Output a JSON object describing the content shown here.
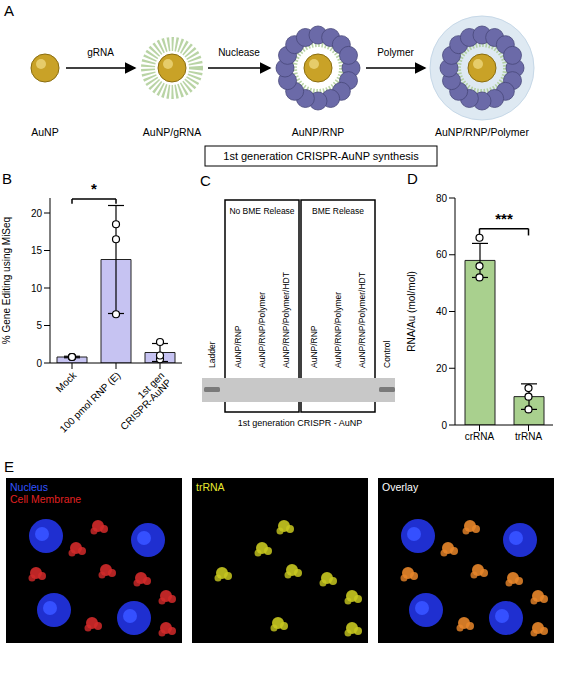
{
  "chart_data": [
    {
      "panel": "B",
      "type": "bar",
      "categories": [
        "Mock",
        "100 pmol RNP (E)",
        "1st gen CRISPR-AuNP"
      ],
      "values": [
        0.8,
        13.8,
        1.4
      ],
      "errors": [
        0.1,
        7.2,
        1.2
      ],
      "points": [
        [
          0.8,
          0.8,
          0.8
        ],
        [
          18.5,
          16.5,
          6.5
        ],
        [
          0.5,
          1.0,
          2.8
        ]
      ],
      "y_label": "% Gene Editing using MiSeq",
      "ylim": [
        0,
        22
      ],
      "yticks": [
        0,
        5,
        10,
        15,
        20
      ],
      "color": "#c6c3f2",
      "significance": [
        {
          "from": "Mock",
          "to": "100 pmol RNP (E)",
          "label": "*"
        }
      ]
    },
    {
      "panel": "D",
      "type": "bar",
      "categories": [
        "crRNA",
        "trRNA"
      ],
      "values": [
        58,
        10
      ],
      "errors": [
        6,
        4.5
      ],
      "points": [
        [
          66,
          56,
          52
        ],
        [
          13,
          10,
          5.5
        ]
      ],
      "y_label": "RNA/Au (mol/mol)",
      "ylim": [
        0,
        80
      ],
      "yticks": [
        0,
        20,
        40,
        60,
        80
      ],
      "color": "#a9d08e",
      "significance": [
        {
          "from": "crRNA",
          "to": "trRNA",
          "label": "***"
        }
      ]
    }
  ],
  "diagram": {
    "panel": "A",
    "items": [
      "AuNP",
      "AuNP/gRNA",
      "AuNP/RNP",
      "AuNP/RNP/Polymer"
    ],
    "reagents": [
      "gRNA",
      "Nuclease",
      "Polymer"
    ],
    "caption": "1st generation CRISPR-AuNP synthesis"
  },
  "gel": {
    "panel": "C",
    "ladder": "Ladder",
    "groups": [
      {
        "title": "No BME Release",
        "lanes": [
          "AuNP/RNP",
          "AuNP/RNP/Polymer",
          "AuNP/RNP/Polymer/HDT"
        ]
      },
      {
        "title": "BME Release",
        "lanes": [
          "AuNP/RNP",
          "AuNP/RNP/Polymer",
          "AuNP/RNP/Polymer/HDT"
        ]
      }
    ],
    "control": "Control",
    "caption": "1st generation CRISPR - AuNP"
  },
  "microscopy": {
    "panel": "E",
    "images": [
      {
        "labels": [
          {
            "text": "Nucleus",
            "color": "#3355ff"
          },
          {
            "text": "Cell Membrane",
            "color": "#e02020"
          }
        ]
      },
      {
        "labels": [
          {
            "text": "trRNA",
            "color": "#e8e830"
          }
        ]
      },
      {
        "labels": [
          {
            "text": "Overlay",
            "color": "#ffffff"
          }
        ]
      }
    ]
  }
}
